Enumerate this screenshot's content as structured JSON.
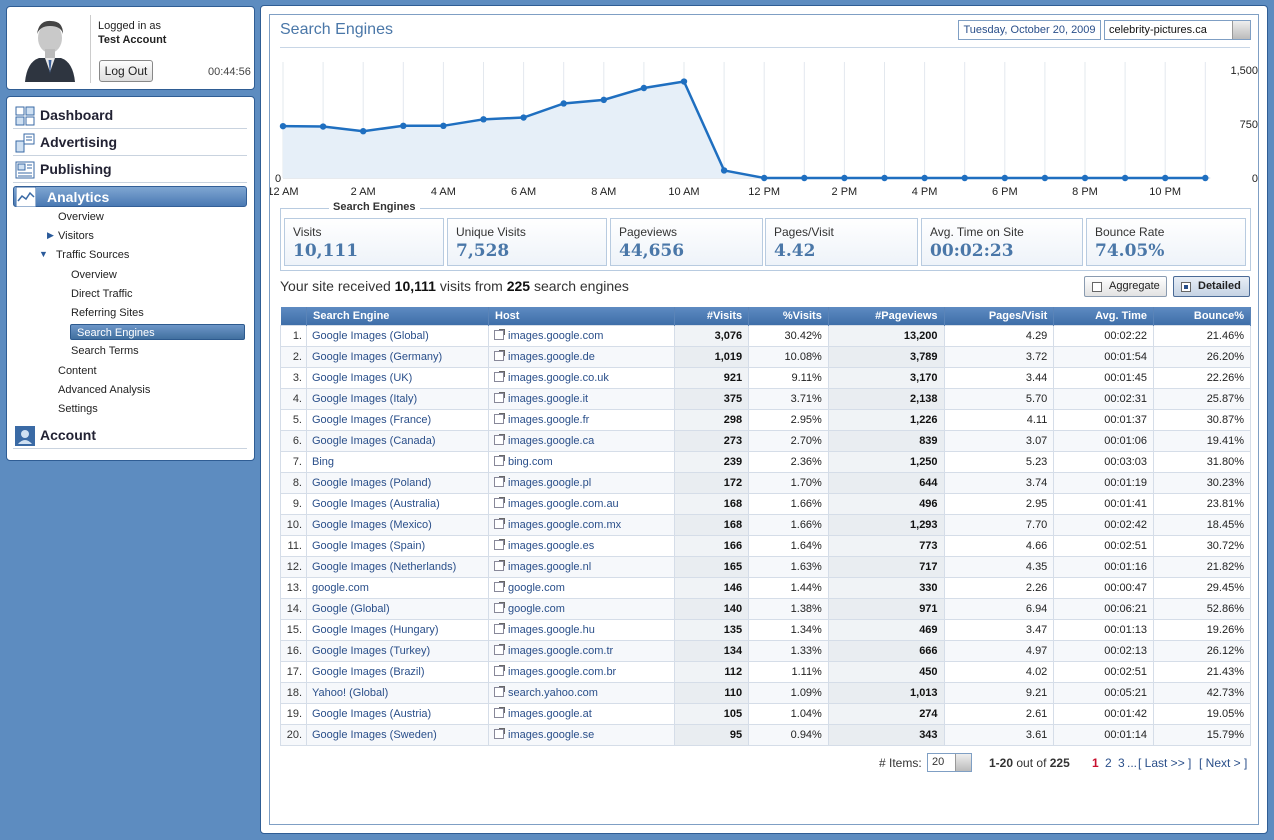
{
  "login": {
    "status": "Logged in as",
    "user": "Test Account",
    "logout_label": "Log Out",
    "timer": "00:44:56"
  },
  "nav": {
    "sections": [
      "Dashboard",
      "Advertising",
      "Publishing",
      "Analytics",
      "Account"
    ],
    "analytics_items": [
      "Overview",
      "Visitors",
      "Traffic Sources"
    ],
    "traffic_items": [
      "Overview",
      "Direct Traffic",
      "Referring Sites",
      "Search Engines",
      "Search Terms"
    ],
    "analytics_more": [
      "Content",
      "Advanced Analysis",
      "Settings"
    ]
  },
  "header": {
    "title": "Search Engines",
    "date": "Tuesday, October 20, 2009",
    "site": "celebrity-pictures.ca"
  },
  "chart_data": {
    "type": "area",
    "x": [
      "12 AM",
      "1 AM",
      "2 AM",
      "3 AM",
      "4 AM",
      "5 AM",
      "6 AM",
      "7 AM",
      "8 AM",
      "9 AM",
      "10 AM",
      "11 AM",
      "12 PM",
      "1 PM",
      "2 PM",
      "3 PM",
      "4 PM",
      "5 PM",
      "6 PM",
      "7 PM",
      "8 PM",
      "9 PM",
      "10 PM",
      "11 PM"
    ],
    "x_tick_labels": [
      "12 AM",
      "2 AM",
      "4 AM",
      "6 AM",
      "8 AM",
      "10 AM",
      "12 PM",
      "2 PM",
      "4 PM",
      "6 PM",
      "8 PM",
      "10 PM"
    ],
    "values": [
      720,
      715,
      650,
      725,
      725,
      815,
      840,
      1035,
      1085,
      1250,
      1340,
      105,
      0,
      0,
      0,
      0,
      0,
      0,
      0,
      0,
      0,
      0,
      0,
      0
    ],
    "y_ticks_right": [
      "1,500",
      "750",
      "0"
    ],
    "y_tick_left": "0",
    "ylim": [
      0,
      1500
    ],
    "grid": "vertical",
    "line_color": "#1f6fc0",
    "fill_color": "#e6eff8"
  },
  "stats": {
    "legend": "Search Engines",
    "items": [
      {
        "label": "Visits",
        "value": "10,111"
      },
      {
        "label": "Unique Visits",
        "value": "7,528"
      },
      {
        "label": "Pageviews",
        "value": "44,656"
      },
      {
        "label": "Pages/Visit",
        "value": "4.42"
      },
      {
        "label": "Avg. Time on Site",
        "value": "00:02:23"
      },
      {
        "label": "Bounce Rate",
        "value": "74.05%"
      }
    ]
  },
  "summary": {
    "pre": "Your site received",
    "visits": "10,111",
    "mid": "visits from",
    "count": "225",
    "post": "search engines"
  },
  "toggles": {
    "aggregate": "Aggregate",
    "detailed": "Detailed"
  },
  "table": {
    "headers": [
      "Search Engine",
      "Host",
      "#Visits",
      "%Visits",
      "#Pageviews",
      "Pages/Visit",
      "Avg. Time",
      "Bounce%"
    ],
    "rows": [
      [
        "1.",
        "Google Images (Global)",
        "images.google.com",
        "3,076",
        "30.42%",
        "13,200",
        "4.29",
        "00:02:22",
        "21.46%"
      ],
      [
        "2.",
        "Google Images (Germany)",
        "images.google.de",
        "1,019",
        "10.08%",
        "3,789",
        "3.72",
        "00:01:54",
        "26.20%"
      ],
      [
        "3.",
        "Google Images (UK)",
        "images.google.co.uk",
        "921",
        "9.11%",
        "3,170",
        "3.44",
        "00:01:45",
        "22.26%"
      ],
      [
        "4.",
        "Google Images (Italy)",
        "images.google.it",
        "375",
        "3.71%",
        "2,138",
        "5.70",
        "00:02:31",
        "25.87%"
      ],
      [
        "5.",
        "Google Images (France)",
        "images.google.fr",
        "298",
        "2.95%",
        "1,226",
        "4.11",
        "00:01:37",
        "30.87%"
      ],
      [
        "6.",
        "Google Images (Canada)",
        "images.google.ca",
        "273",
        "2.70%",
        "839",
        "3.07",
        "00:01:06",
        "19.41%"
      ],
      [
        "7.",
        "Bing",
        "bing.com",
        "239",
        "2.36%",
        "1,250",
        "5.23",
        "00:03:03",
        "31.80%"
      ],
      [
        "8.",
        "Google Images (Poland)",
        "images.google.pl",
        "172",
        "1.70%",
        "644",
        "3.74",
        "00:01:19",
        "30.23%"
      ],
      [
        "9.",
        "Google Images (Australia)",
        "images.google.com.au",
        "168",
        "1.66%",
        "496",
        "2.95",
        "00:01:41",
        "23.81%"
      ],
      [
        "10.",
        "Google Images (Mexico)",
        "images.google.com.mx",
        "168",
        "1.66%",
        "1,293",
        "7.70",
        "00:02:42",
        "18.45%"
      ],
      [
        "11.",
        "Google Images (Spain)",
        "images.google.es",
        "166",
        "1.64%",
        "773",
        "4.66",
        "00:02:51",
        "30.72%"
      ],
      [
        "12.",
        "Google Images (Netherlands)",
        "images.google.nl",
        "165",
        "1.63%",
        "717",
        "4.35",
        "00:01:16",
        "21.82%"
      ],
      [
        "13.",
        "google.com",
        "google.com",
        "146",
        "1.44%",
        "330",
        "2.26",
        "00:00:47",
        "29.45%"
      ],
      [
        "14.",
        "Google (Global)",
        "google.com",
        "140",
        "1.38%",
        "971",
        "6.94",
        "00:06:21",
        "52.86%"
      ],
      [
        "15.",
        "Google Images (Hungary)",
        "images.google.hu",
        "135",
        "1.34%",
        "469",
        "3.47",
        "00:01:13",
        "19.26%"
      ],
      [
        "16.",
        "Google Images (Turkey)",
        "images.google.com.tr",
        "134",
        "1.33%",
        "666",
        "4.97",
        "00:02:13",
        "26.12%"
      ],
      [
        "17.",
        "Google Images (Brazil)",
        "images.google.com.br",
        "112",
        "1.11%",
        "450",
        "4.02",
        "00:02:51",
        "21.43%"
      ],
      [
        "18.",
        "Yahoo! (Global)",
        "search.yahoo.com",
        "110",
        "1.09%",
        "1,013",
        "9.21",
        "00:05:21",
        "42.73%"
      ],
      [
        "19.",
        "Google Images (Austria)",
        "images.google.at",
        "105",
        "1.04%",
        "274",
        "2.61",
        "00:01:42",
        "19.05%"
      ],
      [
        "20.",
        "Google Images (Sweden)",
        "images.google.se",
        "95",
        "0.94%",
        "343",
        "3.61",
        "00:01:14",
        "15.79%"
      ]
    ]
  },
  "pager": {
    "items_label": "# Items:",
    "items_value": "20",
    "range": "1-20",
    "out_of": "out of",
    "total": "225",
    "pages": [
      "1",
      "2",
      "3"
    ],
    "ellipsis": "...",
    "last": "[ Last >> ]",
    "next": "[ Next > ]"
  }
}
